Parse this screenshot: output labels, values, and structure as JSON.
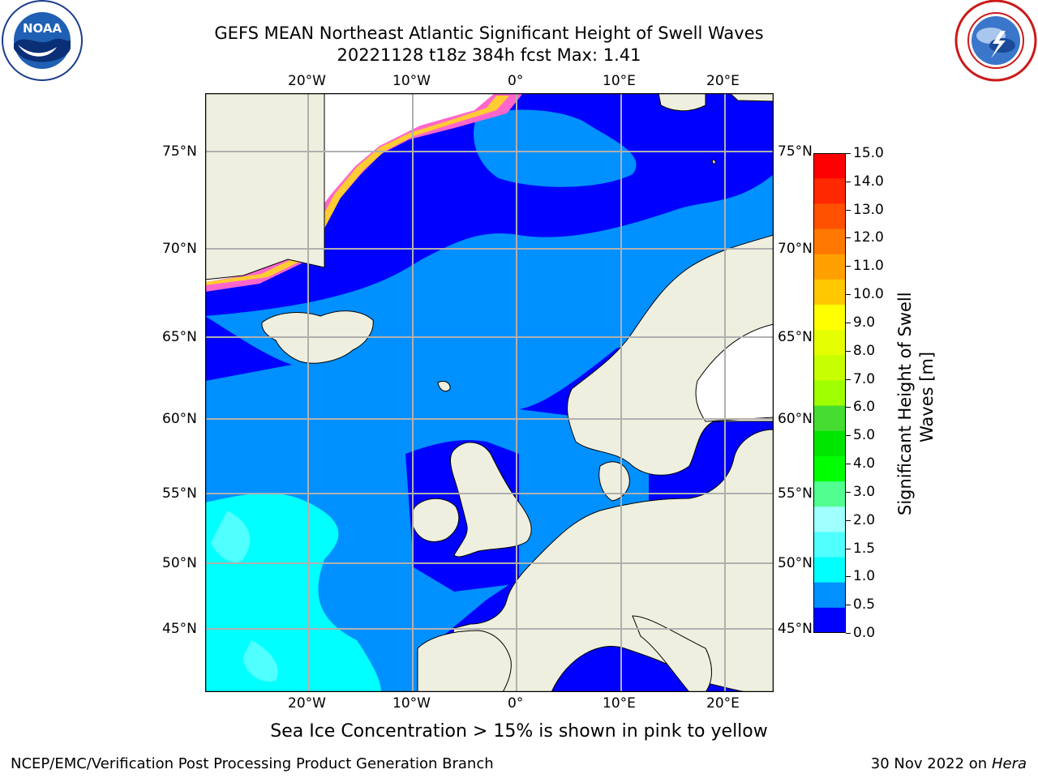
{
  "title_line1": "GEFS MEAN Northeast Atlantic Significant Height of Swell Waves",
  "title_line2": "20221128 t18z 384h fcst   Max: 1.41",
  "caption": "Sea Ice Concentration > 15% is shown in pink to yellow",
  "footer_left": "NCEP/EMC/Verification Post Processing Product Generation Branch",
  "footer_date": "30 Nov 2022 on",
  "footer_host": "Hera",
  "map": {
    "lon_labels": [
      "20°W",
      "10°W",
      "0°",
      "10°E",
      "20°E"
    ],
    "lat_labels_left": [
      "75°N",
      "70°N",
      "65°N",
      "60°N",
      "55°N",
      "50°N",
      "45°N"
    ],
    "lat_labels_right": [
      "75°N",
      "70°N",
      "65°N",
      "60°N",
      "55°N",
      "50°N",
      "45°N"
    ]
  },
  "colorbar": {
    "label": "Significant Height of Swell Waves [m]",
    "label_line1": "Significant Height of Swell",
    "label_line2": "Waves [m]",
    "ticks": [
      "15.0",
      "14.0",
      "13.0",
      "12.0",
      "11.0",
      "10.0",
      "9.0",
      "8.0",
      "7.0",
      "6.0",
      "5.0",
      "4.0",
      "3.0",
      "2.0",
      "1.5",
      "1.0",
      "0.5",
      "0.0"
    ],
    "colors_top_to_bottom": [
      "#ff0000",
      "#ff2800",
      "#ff5000",
      "#ff7800",
      "#ffa000",
      "#ffc800",
      "#ffff00",
      "#e6ff00",
      "#c8ff00",
      "#a0ff00",
      "#46dc32",
      "#00e600",
      "#00ff00",
      "#50ff90",
      "#a0ffff",
      "#50ffff",
      "#00ffff",
      "#0090ff",
      "#0000ff"
    ]
  }
}
